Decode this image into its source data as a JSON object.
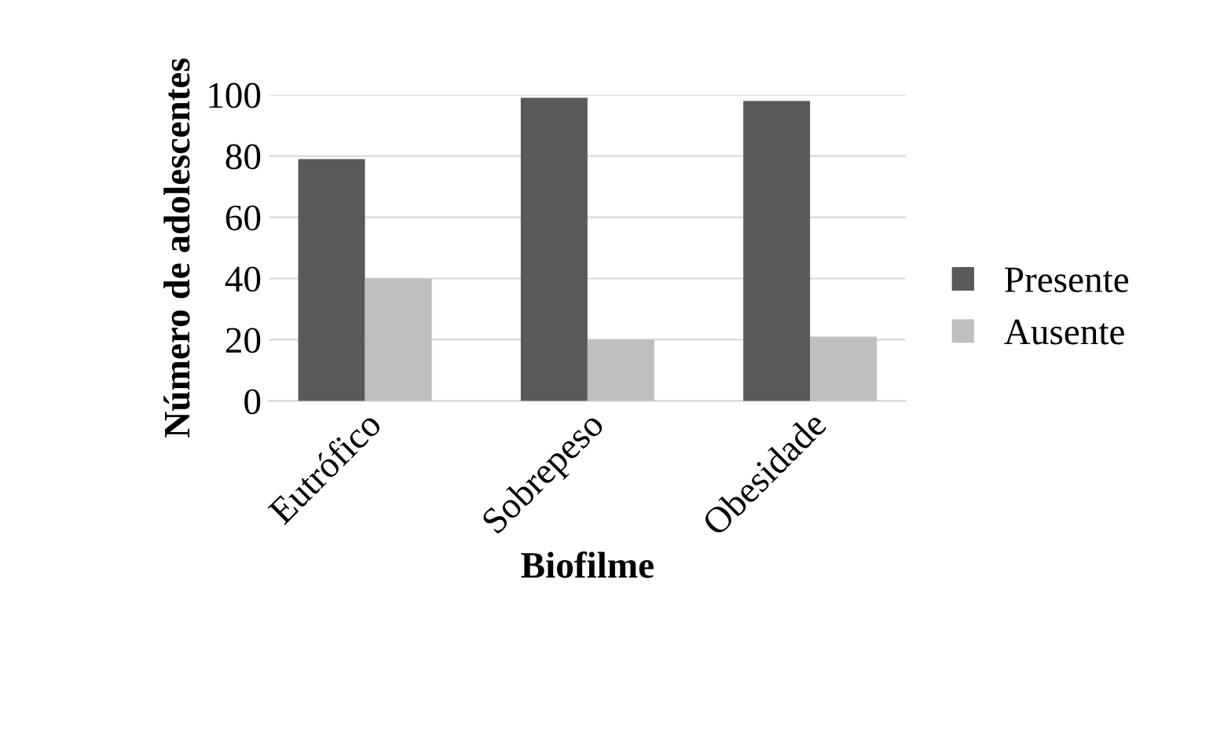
{
  "chart_data": {
    "type": "bar",
    "xlabel": "Biofilme",
    "ylabel": "Número de adolescentes",
    "categories": [
      "Eutrófico",
      "Sobrepeso",
      "Obesidade"
    ],
    "series": [
      {
        "name": "Presente",
        "color": "#595959",
        "values": [
          79,
          99,
          98
        ]
      },
      {
        "name": "Ausente",
        "color": "#bfbfbf",
        "values": [
          40,
          20,
          21
        ]
      }
    ],
    "ylim": [
      0,
      100
    ],
    "yticks": [
      0,
      20,
      40,
      60,
      80,
      100
    ],
    "grid": "y",
    "legend": "right"
  }
}
